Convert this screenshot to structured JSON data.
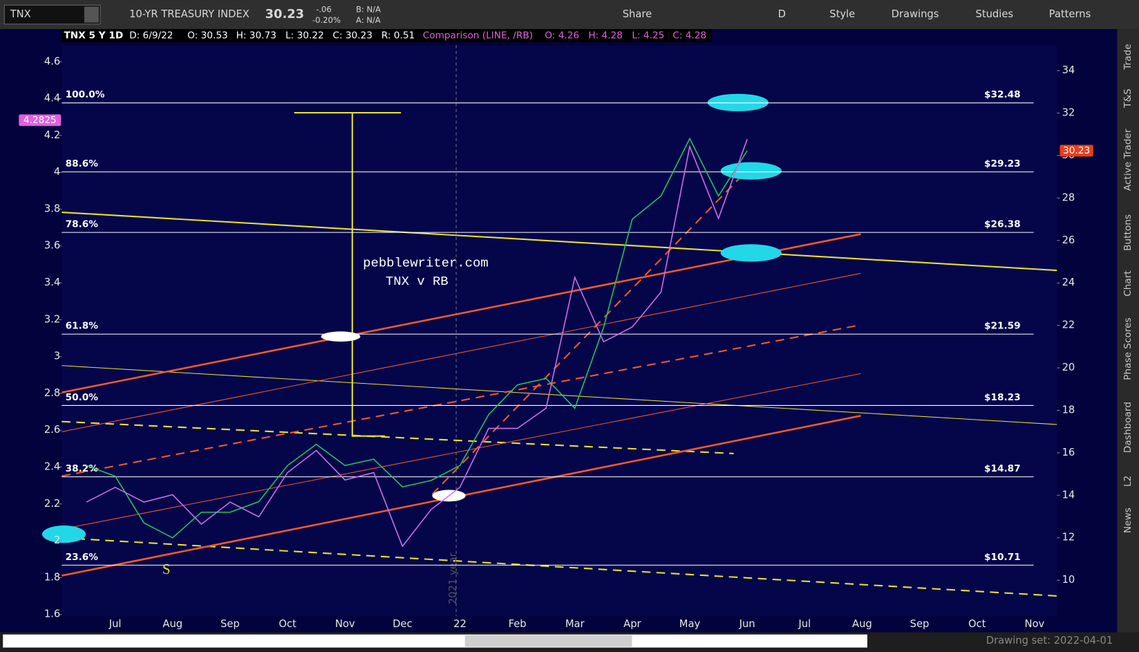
{
  "toolbar": {
    "symbol": "TNX",
    "description": "10-YR TREASURY INDEX",
    "last": "30.23",
    "change": "-.06",
    "change_percent": "-0.20%",
    "bid": "B: N/A",
    "ask": "A: N/A",
    "buttons": [
      "Share",
      "D",
      "Style",
      "Drawings",
      "Studies",
      "Patterns"
    ]
  },
  "info_bar": [
    "TNX 5 Y 1D",
    "D: 6/9/22",
    "O: 30.53",
    "H: 30.73",
    "L: 30.22",
    "C: 30.23",
    "R: 0.51",
    "Comparison (LINE, /RB)",
    "O: 4.26",
    "H: 4.28",
    "L: 4.25",
    "C: 4.28"
  ],
  "side_tabs": [
    "Trade",
    "T&S",
    "Active Trader",
    "Buttons",
    "Chart",
    "Phase Scores",
    "Dashboard",
    "L2",
    "News"
  ],
  "status_bar": "Drawing set: 2022-04-01",
  "chart_data": {
    "type": "line",
    "categories": [
      null,
      "Jul",
      null,
      "Aug",
      null,
      "Sep",
      null,
      "Oct",
      null,
      "Nov",
      null,
      "Dec",
      null,
      "22",
      null,
      "Feb",
      null,
      "Mar",
      null,
      "Apr",
      null,
      "May",
      null,
      "Jun",
      null,
      "Jul",
      null,
      "Aug",
      null,
      "Sep",
      null,
      "Oct",
      null,
      "Nov"
    ],
    "series": [
      {
        "name": "TNX",
        "color": "#22c55e",
        "axis": "y2",
        "values": [
          15.4,
          14.9,
          12.7,
          12.0,
          13.2,
          13.2,
          13.7,
          15.4,
          16.4,
          15.4,
          15.7,
          14.4,
          14.7,
          15.4,
          17.8,
          19.2,
          19.5,
          18.1,
          21.9,
          27.0,
          28.1,
          30.8,
          28.1,
          30.23,
          null,
          null,
          null,
          null,
          null,
          null,
          null,
          null,
          null,
          null
        ]
      },
      {
        "name": "/RB",
        "color": "#d070e8",
        "values": [
          2.21,
          2.29,
          2.21,
          2.25,
          2.09,
          2.21,
          2.13,
          2.37,
          2.49,
          2.33,
          2.37,
          1.97,
          2.17,
          2.29,
          2.61,
          2.61,
          2.72,
          3.43,
          3.08,
          3.16,
          3.35,
          4.14,
          3.75,
          4.18,
          null,
          null,
          null,
          null,
          null,
          null,
          null,
          null,
          null,
          null
        ]
      }
    ],
    "ylim": [
      1.59,
      4.69
    ],
    "yticks": [
      {
        "value": 1.6,
        "label": "1.6"
      },
      1.8,
      2,
      2.2,
      2.4,
      2.6,
      2.8,
      3,
      3.2,
      3.4,
      3.6,
      3.8,
      4,
      4.2,
      4.4,
      4.6
    ],
    "y2lim": [
      8.3,
      35.2
    ],
    "y2ticks": [
      10,
      12,
      14,
      16,
      18,
      20,
      22,
      24,
      26,
      28,
      30,
      32,
      34
    ],
    "grid": false,
    "fib_levels": [
      {
        "label": "100.0%",
        "price_label": "$32.48",
        "value": 32.48
      },
      {
        "label": "88.6%",
        "price_label": "$29.23",
        "value": 29.23
      },
      {
        "label": "78.6%",
        "price_label": "$26.38",
        "value": 26.38
      },
      {
        "label": "61.8%",
        "price_label": "$21.59",
        "value": 21.59
      },
      {
        "label": "50.0%",
        "price_label": "$18.23",
        "value": 18.23
      },
      {
        "label": "38.2%",
        "price_label": "$14.87",
        "value": 14.87
      },
      {
        "label": "23.6%",
        "price_label": "$10.71",
        "value": 10.71
      }
    ],
    "price_markers": [
      {
        "value": 4.2825,
        "label": "4.2825",
        "axis": "y",
        "color": "#e060e0"
      },
      {
        "value": 30.23,
        "label": "30.23",
        "axis": "y2",
        "color": "#e8401c"
      }
    ],
    "annotations": [
      "pebblewriter.com",
      "TNX v RB",
      "S",
      "2021 year"
    ]
  }
}
